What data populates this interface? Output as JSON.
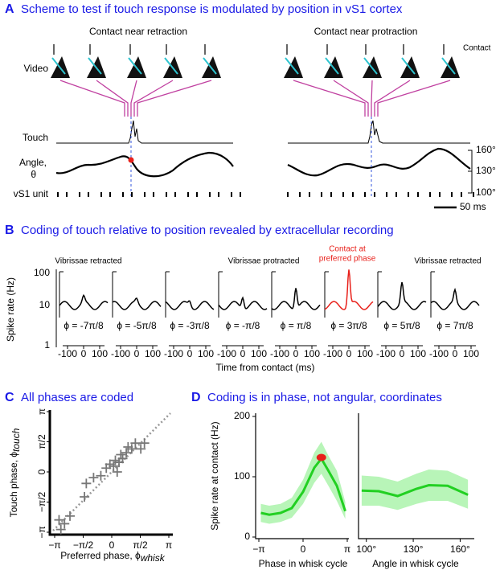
{
  "panel_a": {
    "letter": "A",
    "title": "Scheme to test if touch response is modulated by position in vS1 cortex",
    "conditions": [
      "Contact near retraction",
      "Contact near protraction"
    ],
    "contact_label": "Contact",
    "rows": [
      "Video",
      "Touch",
      "Angle,",
      "θ",
      "vS1 unit"
    ],
    "angle_ticks": [
      "160°",
      "130°",
      "100°"
    ],
    "scale_bar": "50 ms"
  },
  "panel_b": {
    "letter": "B",
    "title": "Coding of touch relative to position revealed by extracellular recording",
    "annotations": [
      "Vibrissae retracted",
      "Vibrissae protracted",
      "Contact at",
      "preferred phase",
      "Vibrissae retracted"
    ],
    "phases": [
      "ϕ = -7π/8",
      "ϕ = -5π/8",
      "ϕ = -3π/8",
      "ϕ = -π/8",
      "ϕ = π/8",
      "ϕ = 3π/8",
      "ϕ = 5π/8",
      "ϕ = 7π/8"
    ],
    "y_label": "Spike rate (Hz)",
    "y_ticks": [
      "100",
      "10",
      "1"
    ],
    "x_ticks": [
      "-100",
      "0",
      "100"
    ],
    "x_label": "Time from contact (ms)"
  },
  "chart_data": [
    {
      "type": "scatter",
      "label": "C",
      "title": "All phases are coded",
      "x_label": "Preferred phase, ϕ",
      "x_label_sub": "whisk",
      "y_label": "Touch phase, ϕ",
      "y_label_sub": "touch",
      "x": [
        -2.9,
        -2.6,
        -2.3,
        -1.4,
        -1.0,
        -0.6,
        -0.3,
        -0.1,
        0.1,
        0.2,
        0.4,
        0.5,
        0.6,
        0.8,
        0.9,
        1.1,
        1.3,
        1.6,
        1.8,
        -1.5,
        -2.8,
        0.3
      ],
      "y": [
        -2.5,
        -2.7,
        -2.3,
        -0.6,
        -0.3,
        -0.2,
        0.2,
        0.4,
        0.3,
        0.6,
        0.5,
        0.9,
        0.7,
        1.0,
        1.3,
        1.2,
        1.5,
        1.2,
        1.5,
        -1.3,
        -3.0,
        0.0
      ],
      "color": "#777777",
      "xlim": [
        -3.1416,
        3.1416
      ],
      "ylim": [
        -3.1416,
        3.1416
      ],
      "xticks": [
        {
          "value": -3.1416,
          "label": "−π"
        },
        {
          "value": -1.5708,
          "label": "−π/2"
        },
        0,
        {
          "value": 1.5708,
          "label": "π/2"
        },
        {
          "value": 3.1416,
          "label": "π"
        }
      ],
      "yticks": [
        {
          "value": -3.1416,
          "label": "−π"
        },
        {
          "value": -1.5708,
          "label": "−π/2"
        },
        0,
        {
          "value": 1.5708,
          "label": "π/2"
        },
        {
          "value": 3.1416,
          "label": "π"
        }
      ]
    },
    {
      "type": "line",
      "label": "D",
      "title": "Coding is in phase, not angular, coordinates",
      "y_label": "Spike rate at contact (Hz)",
      "x_label": "Phase in whisk cycle",
      "x": [
        -3.0,
        -2.4,
        -1.6,
        -0.8,
        0,
        0.8,
        1.3,
        1.8,
        2.4,
        3.0
      ],
      "values": [
        40,
        37,
        40,
        48,
        75,
        115,
        130,
        110,
        85,
        43
      ],
      "lower": [
        25,
        22,
        25,
        32,
        55,
        90,
        105,
        85,
        60,
        30
      ],
      "upper": [
        55,
        52,
        55,
        65,
        95,
        140,
        158,
        135,
        110,
        58
      ],
      "color": "#22d022",
      "band_color": "#b8f5b8",
      "highlight": {
        "x": 1.3,
        "y": 132,
        "color": "#e8201a"
      },
      "xlim": [
        -3.1416,
        3.1416
      ],
      "ylim": [
        0,
        200
      ],
      "xticks": [
        {
          "value": -3.1416,
          "label": "−π"
        },
        0,
        {
          "value": 3.1416,
          "label": "π"
        }
      ],
      "yticks": [
        0,
        100,
        200
      ]
    },
    {
      "type": "line",
      "x_label": "Angle in whisk cycle",
      "x": [
        97,
        108,
        120,
        132,
        140,
        152,
        165
      ],
      "values": [
        77,
        76,
        68,
        80,
        86,
        85,
        70
      ],
      "lower": [
        52,
        52,
        45,
        55,
        60,
        60,
        47
      ],
      "upper": [
        102,
        100,
        92,
        105,
        112,
        110,
        95
      ],
      "color": "#22d022",
      "band_color": "#b8f5b8",
      "xlim": [
        95,
        168
      ],
      "ylim": [
        0,
        200
      ],
      "xticks": [
        {
          "value": 100,
          "label": "100°"
        },
        {
          "value": 130,
          "label": "130°"
        },
        {
          "value": 160,
          "label": "160°"
        }
      ]
    }
  ]
}
